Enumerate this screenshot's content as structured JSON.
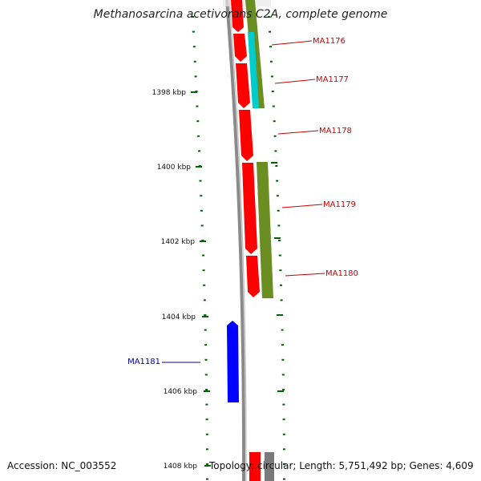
{
  "title": "Methanosarcina acetivorans C2A, complete genome",
  "accession": "Accession: NC_003552",
  "topology": "Topology: circular; Length: 5,751,492 bp; Genes: 4,609",
  "colors": {
    "backbone": "#888888",
    "cds": "#ff0000",
    "cds_reverse": "#0000ff",
    "blast_olive": "#6b8e23",
    "blast_cyan": "#00cccc",
    "tick": "#006400",
    "forward_label": "#cc0000",
    "reverse_label": "#000099"
  },
  "ticks": [
    {
      "label": "1398 kbp"
    },
    {
      "label": "1400 kbp"
    },
    {
      "label": "1402 kbp"
    },
    {
      "label": "1404 kbp"
    },
    {
      "label": "1406 kbp"
    },
    {
      "label": "1408 kbp"
    }
  ],
  "genes": [
    {
      "label": "MA1176",
      "strand": "forward"
    },
    {
      "label": "MA1177",
      "strand": "forward"
    },
    {
      "label": "MA1178",
      "strand": "forward"
    },
    {
      "label": "MA1179",
      "strand": "forward"
    },
    {
      "label": "MA1180",
      "strand": "forward"
    },
    {
      "label": "MA1181",
      "strand": "reverse"
    }
  ]
}
